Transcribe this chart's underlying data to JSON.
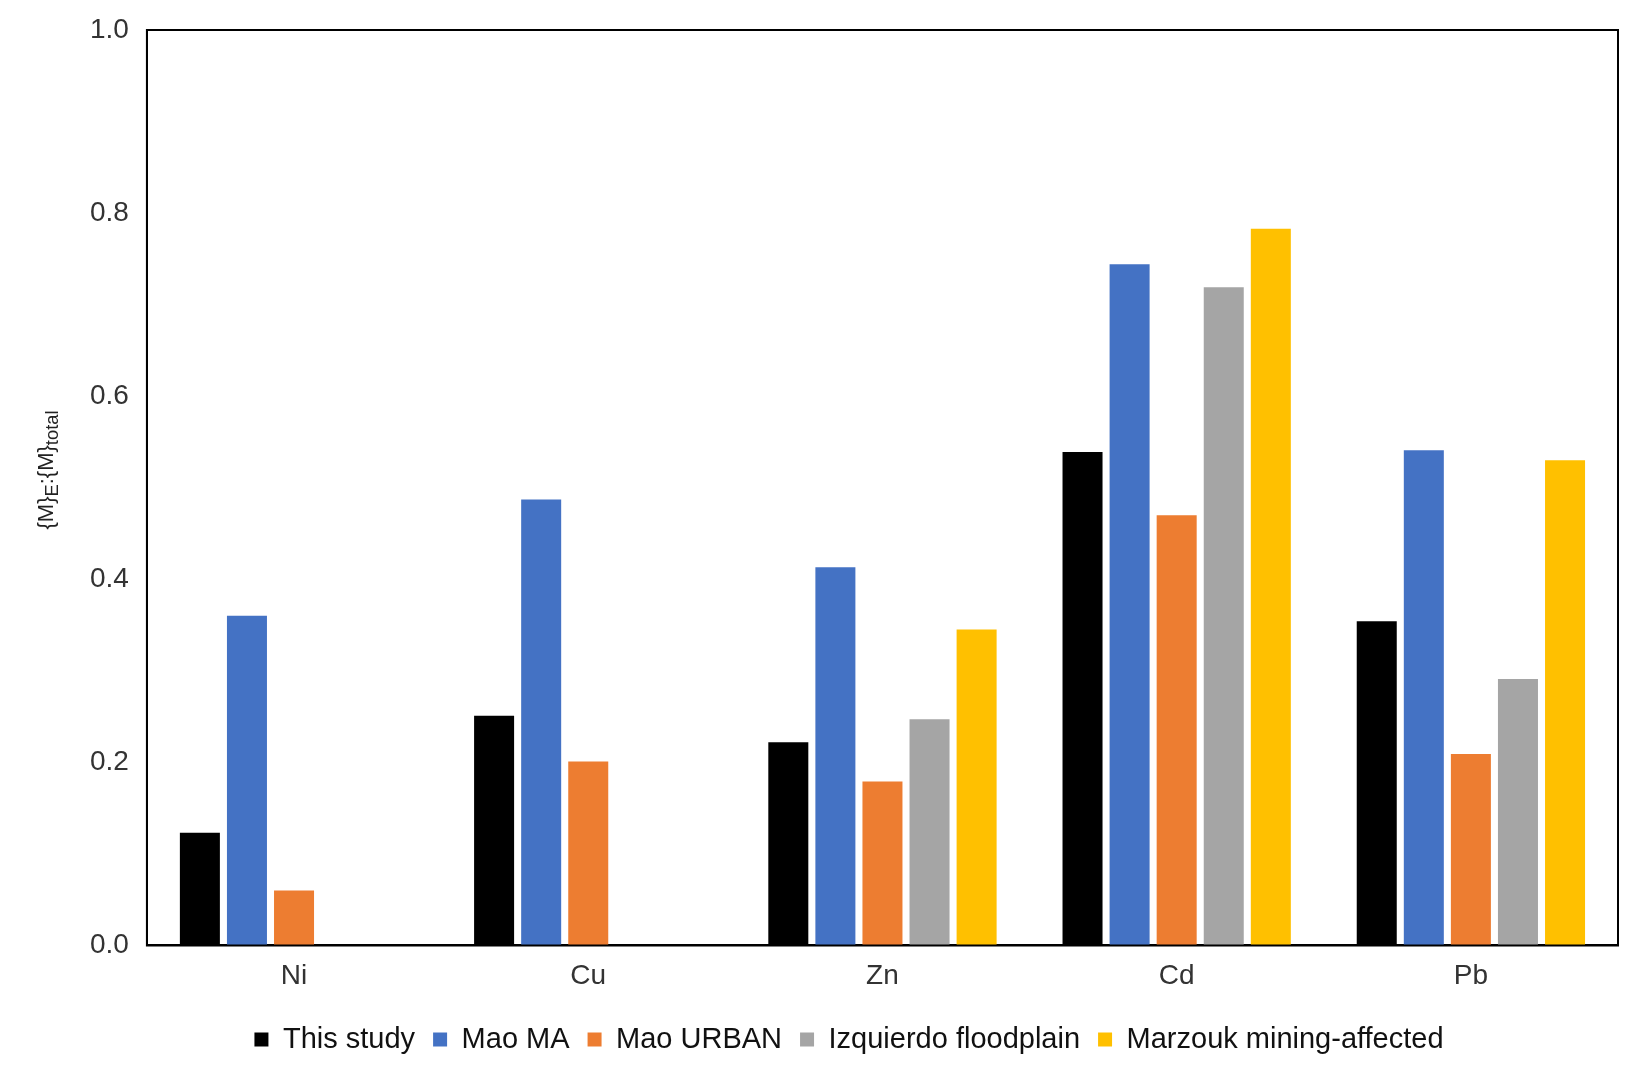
{
  "chart_data": {
    "type": "bar",
    "ylabel": "{M}$_{E}$:{M}$_{total}$",
    "categories": [
      "Ni",
      "Cu",
      "Zn",
      "Cd",
      "Pb"
    ],
    "series": [
      {
        "name": "This study",
        "color": "#000000",
        "values": [
          0.123,
          0.251,
          0.222,
          0.539,
          0.354
        ]
      },
      {
        "name": "Mao MA",
        "color": "#4472c4",
        "values": [
          0.36,
          0.487,
          0.413,
          0.744,
          0.541
        ]
      },
      {
        "name": "Mao URBAN",
        "color": "#ed7d31",
        "values": [
          0.06,
          0.201,
          0.179,
          0.47,
          0.209
        ]
      },
      {
        "name": "Izquierdo floodplain",
        "color": "#a5a5a5",
        "values": [
          null,
          null,
          0.247,
          0.719,
          0.291
        ]
      },
      {
        "name": "Marzouk mining-affected",
        "color": "#ffc000",
        "values": [
          null,
          null,
          0.345,
          0.783,
          0.53
        ]
      }
    ],
    "ylim": [
      0,
      1
    ],
    "yticks": [
      {
        "value": 0,
        "label": "0.0"
      },
      {
        "value": 0.2,
        "label": "0.2"
      },
      {
        "value": 0.4,
        "label": "0.4"
      },
      {
        "value": 0.6,
        "label": "0.6"
      },
      {
        "value": 0.8,
        "label": "0.8"
      },
      {
        "value": 1,
        "label": "1.0"
      }
    ],
    "grid": false,
    "legend": "bottom"
  }
}
